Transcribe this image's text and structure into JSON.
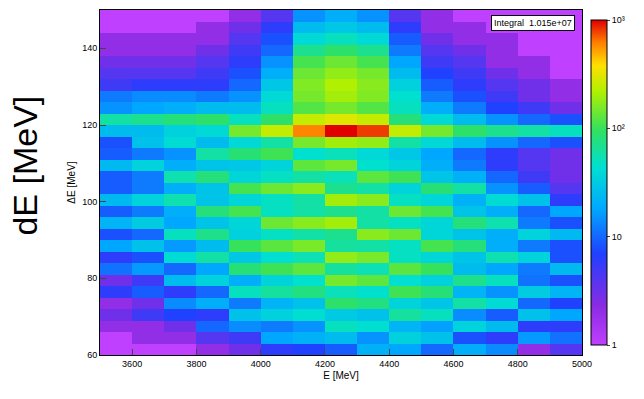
{
  "chart_data": {
    "type": "heatmap",
    "y_label_large": "dE [MeV]",
    "x_label": "E [MeV]",
    "y_label": "ΔE [MeV]",
    "annotation": "Integral  1.015e+07",
    "log": true,
    "x_bins": [
      3500,
      3600,
      3700,
      3800,
      3900,
      4000,
      4100,
      4200,
      4300,
      4400,
      4500,
      4600,
      4700,
      4800,
      4900,
      5000
    ],
    "y_bins": [
      60,
      63,
      66,
      69,
      72,
      75,
      78,
      81,
      84,
      87,
      90,
      93,
      96,
      99,
      102,
      105,
      108,
      111,
      114,
      117,
      120,
      123,
      126,
      129,
      132,
      135,
      138,
      141,
      144,
      147,
      150
    ],
    "counts": [
      [
        1,
        1,
        2,
        3,
        2,
        6,
        3,
        11,
        6,
        18,
        8,
        22,
        9,
        24,
        9,
        9,
        24,
        9,
        8,
        25,
        60,
        15,
        12,
        5,
        4,
        3,
        2,
        2,
        1,
        1
      ],
      [
        1,
        2,
        2,
        5,
        3,
        9,
        5,
        16,
        8,
        27,
        10,
        32,
        12,
        36,
        12,
        12,
        36,
        12,
        27,
        25,
        70,
        18,
        14,
        6,
        4,
        3,
        2,
        2,
        1,
        1
      ],
      [
        1,
        2,
        3,
        7,
        14,
        6,
        25,
        10,
        42,
        16,
        50,
        18,
        20,
        56,
        20,
        56,
        20,
        15,
        42,
        35,
        80,
        20,
        14,
        6,
        4,
        3,
        2,
        2,
        1,
        1
      ],
      [
        2,
        4,
        10,
        6,
        20,
        10,
        36,
        18,
        60,
        25,
        72,
        28,
        80,
        28,
        28,
        80,
        28,
        60,
        25,
        40,
        90,
        25,
        12,
        6,
        5,
        4,
        3,
        2,
        2,
        1
      ],
      [
        3,
        5,
        14,
        27,
        12,
        50,
        20,
        82,
        30,
        99,
        35,
        38,
        110,
        38,
        110,
        38,
        30,
        82,
        40,
        150,
        50,
        25,
        15,
        10,
        8,
        6,
        5,
        4,
        3,
        2
      ],
      [
        6,
        18,
        12,
        35,
        22,
        63,
        37,
        105,
        44,
        126,
        49,
        140,
        49,
        49,
        140,
        49,
        37,
        105,
        60,
        250,
        90,
        50,
        40,
        30,
        20,
        15,
        10,
        8,
        6,
        4
      ],
      [
        7,
        21,
        15,
        43,
        27,
        77,
        45,
        128,
        54,
        153,
        60,
        170,
        60,
        60,
        170,
        60,
        128,
        45,
        150,
        600,
        250,
        120,
        150,
        160,
        140,
        110,
        70,
        40,
        25,
        15
      ],
      [
        9,
        25,
        50,
        31,
        90,
        52,
        150,
        63,
        180,
        63,
        70,
        200,
        70,
        200,
        70,
        52,
        150,
        52,
        200,
        1000,
        300,
        150,
        200,
        220,
        180,
        140,
        90,
        50,
        30,
        20
      ],
      [
        21,
        15,
        43,
        27,
        77,
        45,
        128,
        54,
        153,
        60,
        170,
        60,
        60,
        170,
        60,
        128,
        45,
        40,
        180,
        800,
        250,
        120,
        160,
        170,
        150,
        110,
        70,
        40,
        25,
        15
      ],
      [
        18,
        35,
        22,
        63,
        37,
        105,
        44,
        126,
        49,
        49,
        140,
        49,
        140,
        49,
        37,
        105,
        37,
        30,
        60,
        250,
        80,
        50,
        45,
        35,
        25,
        18,
        12,
        9,
        6,
        4
      ],
      [
        10,
        27,
        17,
        50,
        29,
        82,
        35,
        99,
        38,
        110,
        38,
        38,
        110,
        38,
        82,
        29,
        20,
        18,
        40,
        150,
        40,
        20,
        12,
        9,
        7,
        5,
        4,
        3,
        2,
        2
      ],
      [
        20,
        8,
        36,
        14,
        60,
        22,
        72,
        25,
        28,
        80,
        28,
        80,
        28,
        21,
        60,
        21,
        12,
        10,
        25,
        90,
        25,
        12,
        8,
        6,
        5,
        4,
        3,
        2,
        2,
        1
      ],
      [
        14,
        6,
        25,
        9,
        42,
        15,
        50,
        18,
        56,
        20,
        20,
        56,
        20,
        42,
        15,
        10,
        6,
        6,
        15,
        70,
        15,
        7,
        5,
        4,
        3,
        2,
        2,
        2,
        1,
        1
      ],
      [
        2,
        16,
        6,
        27,
        10,
        32,
        11,
        12,
        36,
        12,
        36,
        12,
        10,
        27,
        9,
        5,
        4,
        4,
        10,
        60,
        10,
        5,
        3,
        3,
        2,
        2,
        1,
        1,
        1,
        1
      ],
      [
        4,
        11,
        6,
        18,
        7,
        22,
        8,
        24,
        8,
        8,
        24,
        8,
        18,
        6,
        4,
        3,
        3,
        3,
        8,
        50,
        8,
        3,
        2,
        2,
        1,
        1,
        1,
        1,
        1,
        1
      ]
    ],
    "xlim": [
      3500,
      5000
    ],
    "xticks": [
      3600,
      3800,
      4000,
      4200,
      4400,
      4600,
      4800,
      5000
    ],
    "ylim": [
      60,
      150
    ],
    "yticks": [
      60,
      80,
      100,
      120,
      140
    ],
    "colorbar_range": [
      1,
      1000
    ],
    "colorbar_ticks": [
      1,
      10,
      {
        "value": 100,
        "label": "10²"
      },
      {
        "value": 1000,
        "label": "10³"
      }
    ]
  }
}
